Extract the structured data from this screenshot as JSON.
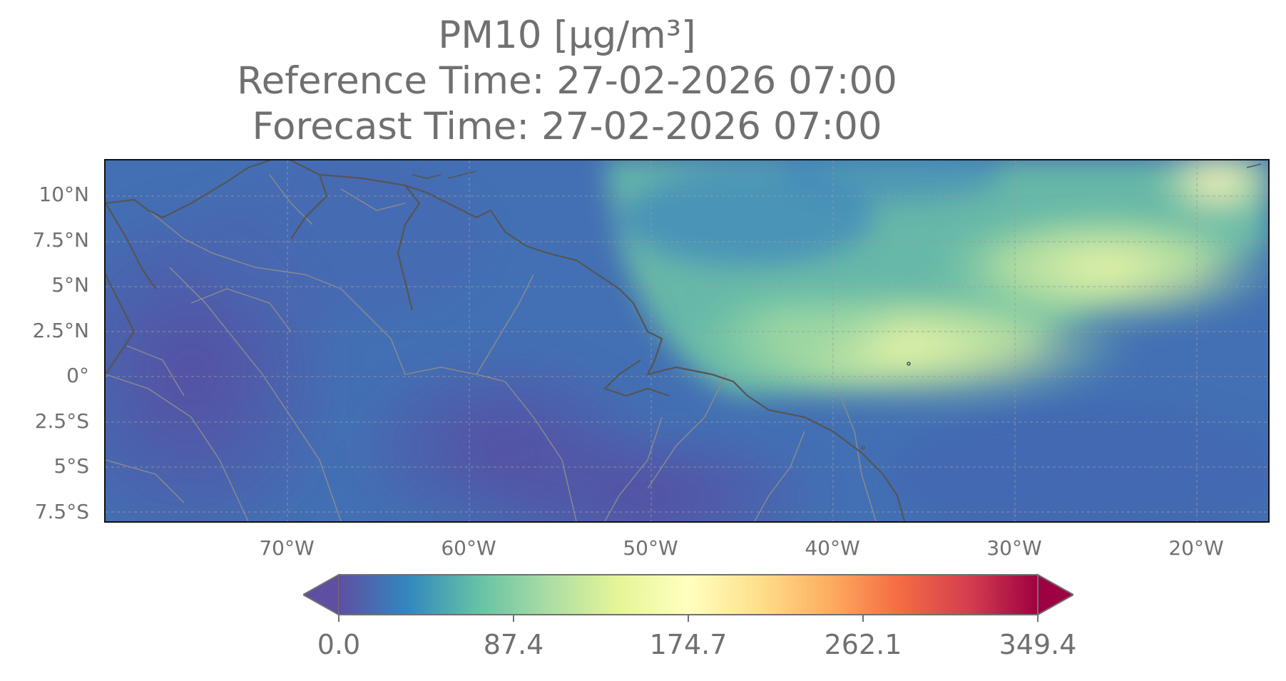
{
  "title": {
    "line1": "PM10 [µg/m³]",
    "line2": "Reference Time: 27-02-2026 07:00",
    "line3": "Forecast Time: 27-02-2026 07:00"
  },
  "map": {
    "lat_ticks": [
      "10°N",
      "7.5°N",
      "5°N",
      "2.5°N",
      "0°",
      "2.5°S",
      "5°S",
      "7.5°S"
    ],
    "lon_ticks": [
      "70°W",
      "60°W",
      "50°W",
      "40°W",
      "30°W",
      "20°W"
    ],
    "extent": {
      "lon_min": -80,
      "lon_max": -16,
      "lat_min": -8,
      "lat_max": 12
    }
  },
  "colorbar": {
    "colormap": "Spectral_r",
    "colors": [
      "#5e4fa2",
      "#3288bd",
      "#66c2a5",
      "#abdda4",
      "#e6f598",
      "#ffffbf",
      "#fee08b",
      "#fdae61",
      "#f46d43",
      "#d53e4f",
      "#9e0142"
    ],
    "ticks": [
      "0.0",
      "87.4",
      "174.7",
      "262.1",
      "349.4"
    ],
    "min": 0.0,
    "max": 349.4,
    "extend": "both"
  },
  "colors": {
    "frame": "#111111",
    "coastline": "#555555",
    "border": "#8c8c8c",
    "gridline": "#9a9a9a",
    "text": "#707070"
  }
}
